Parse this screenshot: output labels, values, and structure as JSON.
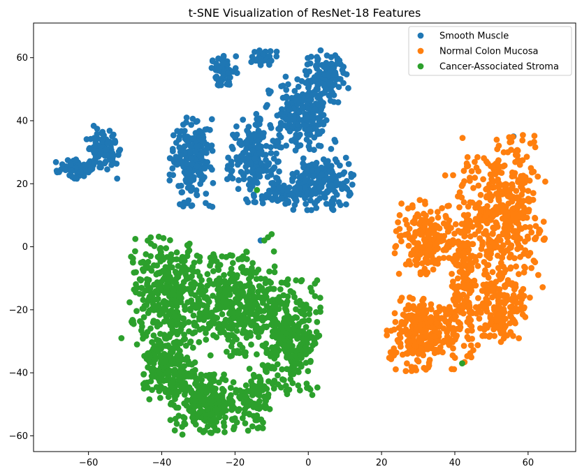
{
  "chart_data": {
    "type": "scatter",
    "title": "t-SNE Visualization of ResNet-18 Features",
    "xlabel": "",
    "ylabel": "",
    "xlim": [
      -75,
      73
    ],
    "ylim": [
      -65,
      71
    ],
    "xticks": [
      -60,
      -40,
      -20,
      0,
      20,
      40,
      60
    ],
    "yticks": [
      -60,
      -40,
      -20,
      0,
      20,
      40,
      60
    ],
    "xtick_labels": [
      "−60",
      "−40",
      "−20",
      "0",
      "20",
      "40",
      "60"
    ],
    "ytick_labels": [
      "−60",
      "−40",
      "−20",
      "0",
      "20",
      "40",
      "60"
    ],
    "grid": false,
    "legend_position": "top-right",
    "series": [
      {
        "name": "Smooth Muscle",
        "color": "#1f77b4",
        "clusters": [
          {
            "cx": -63,
            "cy": 25,
            "rx": 5,
            "ry": 3,
            "n": 60
          },
          {
            "cx": -56,
            "cy": 30,
            "rx": 4,
            "ry": 7,
            "n": 90
          },
          {
            "cx": -23,
            "cy": 56,
            "rx": 3,
            "ry": 4,
            "n": 60
          },
          {
            "cx": -12,
            "cy": 60,
            "rx": 3,
            "ry": 2,
            "n": 35
          },
          {
            "cx": -32,
            "cy": 27,
            "rx": 5,
            "ry": 12,
            "n": 190
          },
          {
            "cx": -15,
            "cy": 28,
            "rx": 6,
            "ry": 12,
            "n": 200
          },
          {
            "cx": -2,
            "cy": 42,
            "rx": 8,
            "ry": 10,
            "n": 210
          },
          {
            "cx": 5,
            "cy": 54,
            "rx": 5,
            "ry": 7,
            "n": 110
          },
          {
            "cx": 4,
            "cy": 20,
            "rx": 7,
            "ry": 7,
            "n": 200
          },
          {
            "cx": -6,
            "cy": 17,
            "rx": 6,
            "ry": 3,
            "n": 60
          }
        ],
        "outliers": [
          [
            56,
            35
          ],
          [
            -27,
            13
          ],
          [
            -13,
            2
          ]
        ]
      },
      {
        "name": "Normal Colon Mucosa",
        "color": "#ff7f0e",
        "clusters": [
          {
            "cx": 32,
            "cy": 3,
            "rx": 7,
            "ry": 10,
            "n": 200
          },
          {
            "cx": 31,
            "cy": -28,
            "rx": 8,
            "ry": 10,
            "n": 270
          },
          {
            "cx": 42,
            "cy": -8,
            "rx": 4,
            "ry": 26,
            "n": 160
          },
          {
            "cx": 53,
            "cy": 10,
            "rx": 10,
            "ry": 22,
            "n": 420
          },
          {
            "cx": 51,
            "cy": -20,
            "rx": 7,
            "ry": 10,
            "n": 170
          }
        ],
        "outliers": []
      },
      {
        "name": "Cancer-Associated Stroma",
        "color": "#2ca02c",
        "clusters": [
          {
            "cx": -38,
            "cy": -16,
            "rx": 9,
            "ry": 16,
            "n": 340
          },
          {
            "cx": -38,
            "cy": -38,
            "rx": 6,
            "ry": 9,
            "n": 200
          },
          {
            "cx": -27,
            "cy": -50,
            "rx": 9,
            "ry": 8,
            "n": 260
          },
          {
            "cx": -20,
            "cy": -18,
            "rx": 10,
            "ry": 14,
            "n": 380
          },
          {
            "cx": -5,
            "cy": -28,
            "rx": 7,
            "ry": 16,
            "n": 300
          },
          {
            "cx": -14,
            "cy": -48,
            "rx": 3,
            "ry": 8,
            "n": 80
          }
        ],
        "outliers": [
          [
            -14,
            18
          ],
          [
            -12,
            2
          ],
          [
            -11,
            3
          ],
          [
            -10,
            4
          ],
          [
            42,
            -37
          ],
          [
            -51,
            -29
          ]
        ]
      }
    ]
  }
}
